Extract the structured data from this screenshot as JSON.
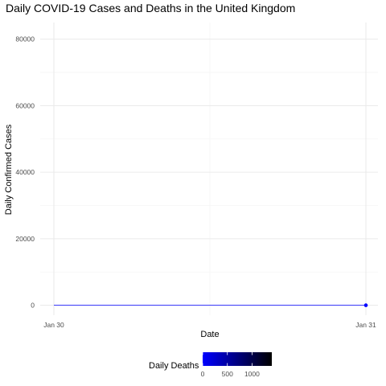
{
  "chart_data": {
    "type": "line",
    "title": "Daily COVID-19 Cases and Deaths in the United Kingdom",
    "xlabel": "Date",
    "ylabel": "Daily Confirmed Cases",
    "x_tick_labels": [
      "Jan 30",
      "Jan 31"
    ],
    "x": [
      "Jan 30",
      "Jan 31"
    ],
    "series": [
      {
        "values": [
          0,
          0
        ],
        "deaths": [
          0,
          0
        ]
      }
    ],
    "ylim": [
      -3000,
      85000
    ],
    "y_ticks": [
      0,
      20000,
      40000,
      60000,
      80000
    ],
    "y_minor_ticks": [
      10000,
      30000,
      50000,
      70000
    ],
    "grid": true,
    "legend": {
      "title": "Daily Deaths",
      "placement": "bottom",
      "range": [
        0,
        1400
      ],
      "ticks": [
        0,
        500,
        1000
      ],
      "colors": [
        "#0000ff",
        "#000000"
      ]
    },
    "colors": {
      "line": "#0000ff",
      "point": "#0000ff",
      "grid_major": "#ebebeb",
      "grid_minor": "#f5f5f5"
    }
  }
}
